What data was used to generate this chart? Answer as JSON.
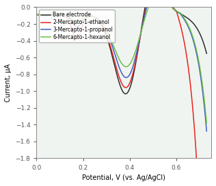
{
  "title": "",
  "xlabel": "Potential, V (vs. Ag/AgCl)",
  "ylabel": "Current, μA",
  "xlim": [
    0.0,
    0.75
  ],
  "ylim": [
    -1.8,
    0.0
  ],
  "yticks": [
    -1.8,
    -1.6,
    -1.4,
    -1.2,
    -1.0,
    -0.8,
    -0.6,
    -0.4,
    -0.2,
    0.0
  ],
  "xticks": [
    0.0,
    0.2,
    0.4,
    0.6
  ],
  "legend": [
    "Bare electrode",
    "2-Mercapto-1-ethanol",
    "3-Mercapto-1-propanol",
    "6-Mercapto-1-hexanol"
  ],
  "colors": [
    "#2d2d2d",
    "#e8211d",
    "#3b5ec6",
    "#6dbf45"
  ],
  "background": "#f0f4f0"
}
